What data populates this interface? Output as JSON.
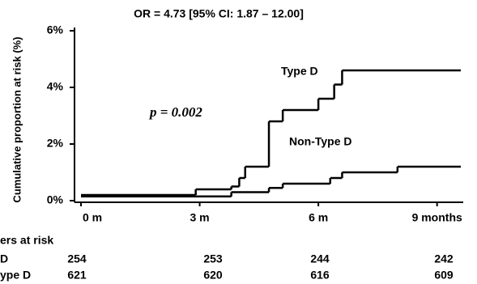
{
  "chart_data": {
    "type": "step",
    "title": "OR = 4.73 [95% CI: 1.87 – 12.00]",
    "y_label": "Cumulative proportion at risk (%)",
    "annotation": "p = 0.002",
    "xlim": [
      0,
      9.6
    ],
    "ylim": [
      0,
      6
    ],
    "xticks": [
      {
        "value": 0,
        "label": "0 m"
      },
      {
        "value": 3,
        "label": "3 m"
      },
      {
        "value": 6,
        "label": "6 m"
      },
      {
        "value": 9,
        "label": "9 months"
      }
    ],
    "yticks": [
      {
        "value": 0,
        "label": "0%"
      },
      {
        "value": 2,
        "label": "2%"
      },
      {
        "value": 4,
        "label": "4%"
      },
      {
        "value": 6,
        "label": "6%"
      }
    ],
    "series": [
      {
        "name": "Type D",
        "color": "#000000",
        "x": [
          0,
          2.9,
          3.8,
          4.0,
          4.15,
          4.75,
          5.1,
          6.0,
          6.4,
          6.6
        ],
        "values": [
          0.2,
          0.4,
          0.5,
          0.8,
          1.2,
          2.8,
          3.2,
          3.6,
          4.1,
          4.6
        ]
      },
      {
        "name": "Non-Type D",
        "color": "#000000",
        "x": [
          0,
          3.8,
          4.75,
          5.1,
          6.3,
          6.6,
          8.0
        ],
        "values": [
          0.15,
          0.3,
          0.45,
          0.6,
          0.8,
          1.0,
          1.2
        ]
      }
    ],
    "risk_table": {
      "title": "ers at risk",
      "rows": [
        {
          "label": "D",
          "counts": [
            254,
            253,
            244,
            242
          ]
        },
        {
          "label": "ype D",
          "counts": [
            621,
            620,
            616,
            609
          ]
        }
      ]
    }
  }
}
